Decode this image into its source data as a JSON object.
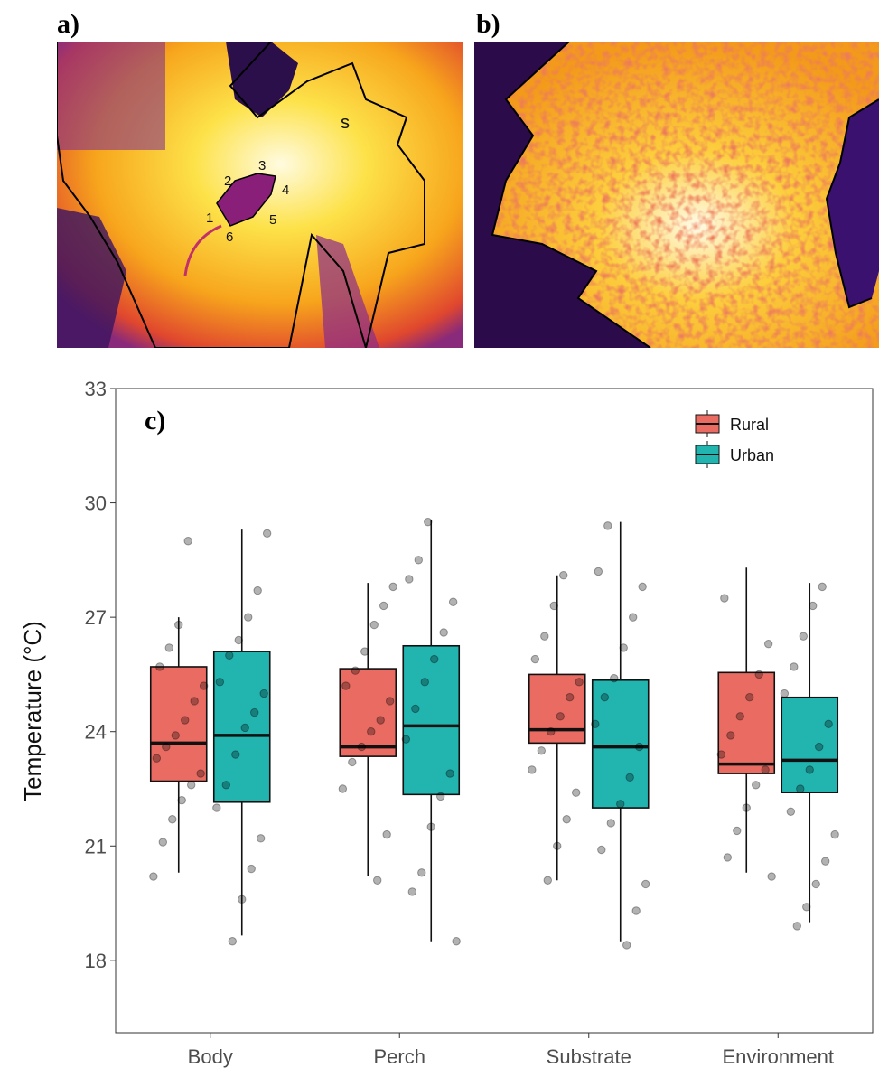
{
  "panels": [
    {
      "label": "a)",
      "annotations": [
        "s",
        "1",
        "2",
        "3",
        "4",
        "5",
        "6"
      ]
    },
    {
      "label": "b)"
    }
  ],
  "chart_data": {
    "type": "boxplot",
    "panel_label": "c)",
    "y_label": "Temperature (°C)",
    "categories": [
      "Body",
      "Perch",
      "Substrate",
      "Environment"
    ],
    "ylim": [
      16.1,
      33
    ],
    "yticks": [
      18,
      21,
      24,
      27,
      30,
      33
    ],
    "legend": "top-right",
    "series": [
      {
        "name": "Rural",
        "color": "#ea6b62",
        "boxes": [
          {
            "min": 20.3,
            "q1": 22.7,
            "median": 23.7,
            "q3": 25.7,
            "max": 27.0,
            "points": [
              20.2,
              21.1,
              21.7,
              22.2,
              22.6,
              22.9,
              23.3,
              23.6,
              23.9,
              24.3,
              24.8,
              25.2,
              25.7,
              26.2,
              26.8,
              29.0
            ]
          },
          {
            "min": 20.2,
            "q1": 23.35,
            "median": 23.6,
            "q3": 25.65,
            "max": 27.9,
            "points": [
              20.1,
              21.3,
              22.5,
              23.2,
              23.6,
              24.0,
              24.3,
              24.8,
              25.2,
              25.6,
              26.1,
              26.8,
              27.3,
              27.8
            ]
          },
          {
            "min": 20.1,
            "q1": 23.7,
            "median": 24.05,
            "q3": 25.5,
            "max": 28.1,
            "points": [
              20.1,
              21.0,
              21.7,
              22.4,
              23.0,
              23.5,
              24.0,
              24.4,
              24.9,
              25.3,
              25.9,
              26.5,
              27.3,
              28.1
            ]
          },
          {
            "min": 20.3,
            "q1": 22.9,
            "median": 23.15,
            "q3": 25.55,
            "max": 28.3,
            "points": [
              20.2,
              20.7,
              21.4,
              22.0,
              22.6,
              23.0,
              23.4,
              23.9,
              24.4,
              24.9,
              25.5,
              26.3,
              27.5
            ]
          }
        ]
      },
      {
        "name": "Urban",
        "color": "#22b5b0",
        "boxes": [
          {
            "min": 18.65,
            "q1": 22.15,
            "median": 23.9,
            "q3": 26.1,
            "max": 29.3,
            "points": [
              18.5,
              19.6,
              20.4,
              21.2,
              22.0,
              22.6,
              23.4,
              24.1,
              24.5,
              25.0,
              25.3,
              26.0,
              26.4,
              27.0,
              27.7,
              29.2
            ]
          },
          {
            "min": 18.5,
            "q1": 22.35,
            "median": 24.15,
            "q3": 26.25,
            "max": 29.55,
            "points": [
              18.5,
              19.8,
              20.3,
              21.5,
              22.3,
              22.9,
              23.8,
              24.6,
              25.3,
              25.9,
              26.6,
              27.4,
              28.0,
              28.5,
              29.5
            ]
          },
          {
            "min": 18.5,
            "q1": 22.0,
            "median": 23.6,
            "q3": 25.35,
            "max": 29.5,
            "points": [
              18.4,
              19.3,
              20.0,
              20.9,
              21.6,
              22.1,
              22.8,
              23.6,
              24.2,
              24.9,
              25.4,
              26.2,
              27.0,
              27.8,
              28.2,
              29.4
            ]
          },
          {
            "min": 19.0,
            "q1": 22.4,
            "median": 23.25,
            "q3": 24.9,
            "max": 27.9,
            "points": [
              18.9,
              19.4,
              20.0,
              20.6,
              21.3,
              21.9,
              22.5,
              23.0,
              23.6,
              24.2,
              25.0,
              25.7,
              26.5,
              27.3,
              27.8
            ]
          }
        ]
      }
    ]
  }
}
